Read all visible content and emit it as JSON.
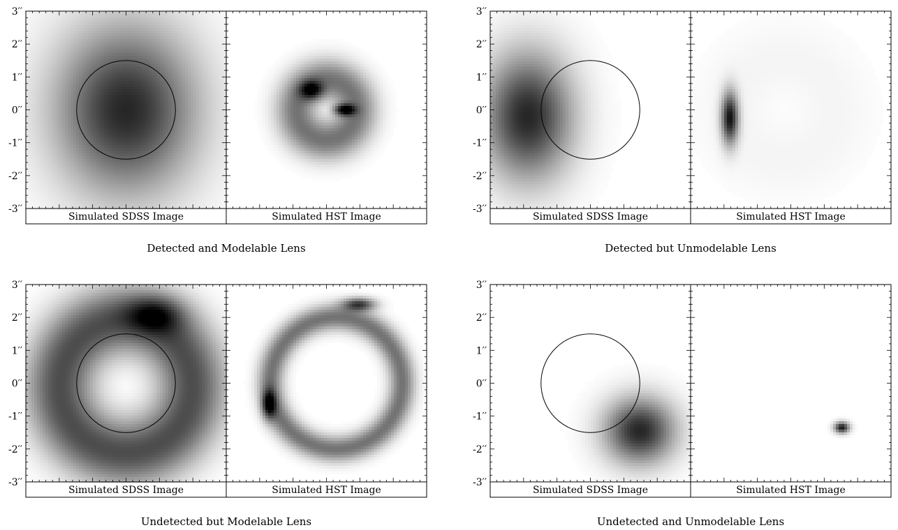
{
  "y_tick_labels": [
    "3′′",
    "2′′",
    "1′′",
    "0′′",
    "-1′′",
    "-2′′",
    "-3′′"
  ],
  "panels": [
    {
      "caption": "Detected and Modelable Lens",
      "left_label": "Simulated SDSS Image",
      "right_label": "Simulated HST Image",
      "sdss_blobs": [
        {
          "x": 0.0,
          "y": 0.0,
          "sx": 1.5,
          "sy": 1.8,
          "amp": 0.85
        }
      ],
      "hst_blobs": [
        {
          "x": 0.0,
          "y": 0.0,
          "ring": 0.9,
          "w": 0.45,
          "amp": 0.55
        },
        {
          "x": -0.45,
          "y": 0.6,
          "sx": 0.25,
          "sy": 0.2,
          "amp": 0.6
        },
        {
          "x": 0.55,
          "y": 0.0,
          "sx": 0.22,
          "sy": 0.12,
          "amp": 0.75
        }
      ]
    },
    {
      "caption": "Detected but Unmodelable Lens",
      "left_label": "Simulated SDSS Image",
      "right_label": "Simulated HST Image",
      "sdss_blobs": [
        {
          "x": -1.9,
          "y": -0.2,
          "sx": 0.95,
          "sy": 1.35,
          "amp": 0.85
        }
      ],
      "hst_blobs": [
        {
          "x": -1.85,
          "y": -0.25,
          "sx": 0.18,
          "sy": 0.55,
          "amp": 0.9
        },
        {
          "x": -0.2,
          "y": 0.0,
          "ring": 1.5,
          "w": 0.9,
          "amp": 0.04
        }
      ]
    },
    {
      "caption": "Undetected but Modelable Lens",
      "left_label": "Simulated SDSS Image",
      "right_label": "Simulated HST Image",
      "sdss_blobs": [
        {
          "x": 0.0,
          "y": -0.1,
          "ring": 2.0,
          "w": 0.75,
          "amp": 0.7
        },
        {
          "x": 0.9,
          "y": 2.1,
          "sx": 0.6,
          "sy": 0.4,
          "amp": 0.45
        }
      ],
      "hst_blobs": [
        {
          "x": 0.3,
          "y": 0.0,
          "ring": 2.0,
          "w": 0.28,
          "amp": 0.55
        },
        {
          "x": 1.0,
          "y": 2.4,
          "sx": 0.35,
          "sy": 0.14,
          "amp": 0.7
        },
        {
          "x": -1.75,
          "y": -0.65,
          "sx": 0.15,
          "sy": 0.3,
          "amp": 0.7
        }
      ]
    },
    {
      "caption": "Undetected and Unmodelable Lens",
      "left_label": "Simulated SDSS Image",
      "right_label": "Simulated HST Image",
      "sdss_blobs": [
        {
          "x": 1.5,
          "y": -1.45,
          "sx": 0.75,
          "sy": 0.7,
          "amp": 0.85
        }
      ],
      "hst_blobs": [
        {
          "x": 1.55,
          "y": -1.35,
          "sx": 0.16,
          "sy": 0.12,
          "amp": 0.9
        }
      ]
    }
  ]
}
